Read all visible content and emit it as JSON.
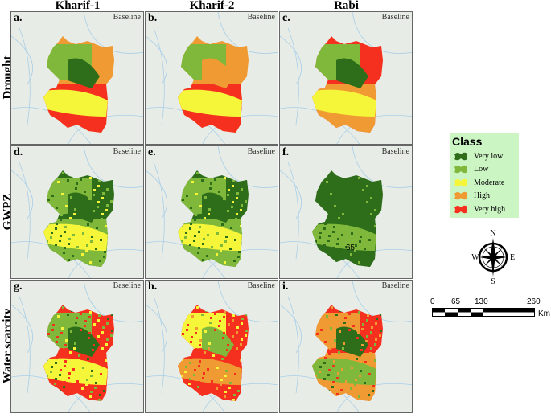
{
  "columns": [
    "Kharif-1",
    "Kharif-2",
    "Rabi"
  ],
  "rows": [
    "Drought",
    "GWPZ",
    "Water scarcity"
  ],
  "panels": [
    {
      "label": "a.",
      "tag": "Baseline",
      "row": 0,
      "col": 0,
      "zones": [
        "orange",
        "red",
        "yellow",
        "lightgreen",
        "darkgreen"
      ]
    },
    {
      "label": "b.",
      "tag": "Baseline",
      "row": 0,
      "col": 1,
      "zones": [
        "orange",
        "red",
        "yellow",
        "lightgreen",
        "orange"
      ]
    },
    {
      "label": "c.",
      "tag": "Baseline",
      "row": 0,
      "col": 2,
      "zones": [
        "red",
        "orange",
        "yellow",
        "lightgreen",
        "darkgreen"
      ]
    },
    {
      "label": "d.",
      "tag": "Baseline",
      "row": 1,
      "col": 0,
      "zones": [
        "darkgreen",
        "lightgreen",
        "yellow",
        "lightgreen",
        "darkgreen"
      ]
    },
    {
      "label": "e.",
      "tag": "Baseline",
      "row": 1,
      "col": 1,
      "zones": [
        "darkgreen",
        "lightgreen",
        "yellow",
        "lightgreen",
        "darkgreen"
      ]
    },
    {
      "label": "f.",
      "tag": "Baseline",
      "row": 1,
      "col": 2,
      "zones": [
        "darkgreen",
        "darkgreen",
        "lightgreen",
        "darkgreen",
        "darkgreen"
      ],
      "annotation": "65"
    },
    {
      "label": "g.",
      "tag": "Baseline",
      "row": 2,
      "col": 0,
      "zones": [
        "red",
        "red",
        "yellow",
        "lightgreen",
        "darkgreen"
      ]
    },
    {
      "label": "h.",
      "tag": "Baseline",
      "row": 2,
      "col": 1,
      "zones": [
        "red",
        "red",
        "orange",
        "yellow",
        "lightgreen"
      ]
    },
    {
      "label": "i.",
      "tag": "Baseline",
      "row": 2,
      "col": 2,
      "zones": [
        "red",
        "orange",
        "lightgreen",
        "orange",
        "darkgreen"
      ]
    }
  ],
  "colors": {
    "darkgreen": "#2e6e1a",
    "lightgreen": "#7fb83a",
    "yellow": "#f5f53a",
    "orange": "#ef9a32",
    "red": "#f5301f",
    "water": "#a9cfe8"
  },
  "legend": {
    "title": "Class",
    "items": [
      {
        "label": "Very low",
        "color": "#2e6e1a"
      },
      {
        "label": "Low",
        "color": "#7fb83a"
      },
      {
        "label": "Moderate",
        "color": "#f5f53a"
      },
      {
        "label": "High",
        "color": "#ef9a32"
      },
      {
        "label": "Very high",
        "color": "#f5301f"
      }
    ]
  },
  "compass": {
    "n": "N",
    "s": "S",
    "e": "E",
    "w": "W"
  },
  "scale": {
    "ticks": [
      "0",
      "65",
      "130",
      "260"
    ],
    "unit": "Km"
  }
}
